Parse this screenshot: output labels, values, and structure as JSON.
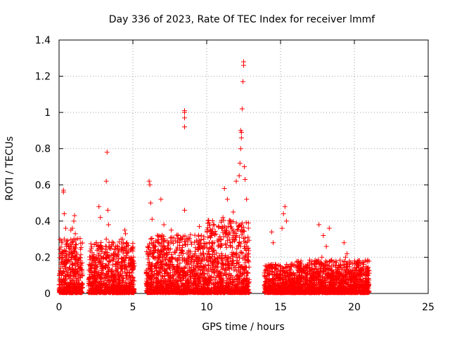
{
  "chart_data": {
    "type": "scatter",
    "title": "Day 336 of 2023, Rate Of TEC Index for receiver lmmf",
    "xlabel": "GPS time / hours",
    "ylabel": "ROTI / TECUs",
    "xlim": [
      0,
      25
    ],
    "ylim": [
      0,
      1.4
    ],
    "xticks": [
      0,
      5,
      10,
      15,
      20,
      25
    ],
    "xtick_labels": [
      "0",
      "5",
      "10",
      "15",
      "20",
      "25"
    ],
    "yticks": [
      0,
      0.2,
      0.4,
      0.6,
      0.8,
      1,
      1.2,
      1.4
    ],
    "ytick_labels": [
      "0",
      "0.2",
      "0.4",
      "0.6",
      "0.8",
      "1",
      "1.2",
      "1.4"
    ],
    "grid": true,
    "marker": "+",
    "color": "#ff0000",
    "series": [
      {
        "name": "ROTI",
        "x": [
          0.05,
          0.1,
          0.15,
          0.2,
          0.25,
          0.3,
          0.35,
          0.4,
          0.45,
          0.5,
          0.55,
          0.6,
          0.65,
          0.7,
          0.8,
          0.9,
          1.0,
          1.1,
          1.2,
          1.3,
          1.4,
          1.5,
          0.3,
          0.3,
          0.35,
          0.45,
          0.5,
          0.55,
          0.8,
          0.9,
          1.0,
          1.05,
          1.1,
          1.15,
          1.2,
          2.0,
          2.1,
          2.2,
          2.3,
          2.4,
          2.5,
          2.6,
          2.7,
          2.8,
          2.9,
          3.0,
          3.1,
          3.2,
          3.3,
          3.4,
          3.5,
          3.6,
          3.7,
          3.8,
          3.9,
          4.0,
          4.1,
          4.2,
          4.3,
          4.4,
          4.5,
          4.6,
          4.7,
          4.8,
          4.9,
          5.0,
          3.2,
          3.25,
          3.3,
          3.35,
          2.7,
          2.8,
          4.3,
          4.45,
          6.0,
          6.2,
          6.4,
          6.6,
          6.8,
          7.0,
          7.2,
          7.4,
          7.6,
          7.8,
          8.0,
          8.2,
          8.4,
          8.6,
          8.8,
          9.0,
          9.2,
          9.4,
          9.6,
          9.8,
          10.0,
          6.1,
          6.15,
          6.2,
          6.3,
          6.9,
          7.1,
          7.6,
          8.5,
          8.5,
          8.5,
          8.5,
          8.5,
          9.5,
          10.2,
          10.4,
          10.6,
          10.8,
          11.0,
          11.2,
          11.4,
          11.6,
          11.8,
          12.0,
          12.2,
          12.4,
          12.6,
          12.8,
          11.2,
          11.4,
          11.8,
          12.0,
          12.2,
          12.25,
          12.3,
          12.3,
          12.35,
          12.35,
          12.4,
          12.45,
          12.5,
          12.5,
          12.55,
          12.6,
          12.7,
          10.3,
          10.5,
          10.8,
          11.1,
          14.0,
          14.2,
          14.4,
          14.6,
          14.8,
          15.0,
          15.2,
          15.4,
          15.6,
          15.8,
          16.0,
          14.4,
          14.5,
          15.1,
          15.2,
          15.3,
          15.4,
          16.2,
          16.4,
          16.6,
          16.8,
          17.0,
          17.2,
          17.4,
          17.6,
          17.8,
          18.0,
          18.2,
          18.4,
          18.6,
          18.8,
          19.0,
          19.2,
          19.4,
          19.6,
          19.8,
          20.0,
          20.2,
          20.4,
          20.6,
          20.8,
          17.6,
          17.9,
          18.1,
          18.3,
          19.3,
          19.5,
          20.3
        ],
        "y": [
          0.05,
          0.12,
          0.2,
          0.28,
          0.15,
          0.08,
          0.3,
          0.1,
          0.22,
          0.05,
          0.13,
          0.18,
          0.09,
          0.25,
          0.06,
          0.14,
          0.11,
          0.2,
          0.07,
          0.15,
          0.1,
          0.04,
          0.56,
          0.57,
          0.44,
          0.36,
          0.26,
          0.18,
          0.35,
          0.36,
          0.4,
          0.43,
          0.33,
          0.2,
          0.17,
          0.08,
          0.12,
          0.05,
          0.18,
          0.1,
          0.06,
          0.15,
          0.22,
          0.09,
          0.14,
          0.2,
          0.1,
          0.3,
          0.12,
          0.18,
          0.07,
          0.13,
          0.2,
          0.1,
          0.16,
          0.08,
          0.25,
          0.3,
          0.12,
          0.2,
          0.33,
          0.28,
          0.15,
          0.1,
          0.24,
          0.09,
          0.62,
          0.78,
          0.46,
          0.38,
          0.48,
          0.42,
          0.3,
          0.35,
          0.1,
          0.15,
          0.2,
          0.08,
          0.12,
          0.18,
          0.25,
          0.1,
          0.2,
          0.14,
          0.18,
          0.12,
          0.22,
          0.1,
          0.16,
          0.2,
          0.12,
          0.18,
          0.1,
          0.15,
          0.2,
          0.62,
          0.6,
          0.5,
          0.41,
          0.52,
          0.38,
          0.35,
          0.92,
          0.97,
          1.0,
          1.01,
          0.46,
          0.37,
          0.2,
          0.28,
          0.15,
          0.3,
          0.22,
          0.35,
          0.18,
          0.26,
          0.3,
          0.2,
          0.28,
          0.35,
          0.25,
          0.18,
          0.58,
          0.52,
          0.45,
          0.62,
          0.65,
          0.72,
          0.8,
          0.9,
          0.89,
          0.86,
          1.02,
          1.17,
          1.26,
          1.28,
          0.7,
          0.63,
          0.52,
          0.32,
          0.28,
          0.37,
          0.42,
          0.03,
          0.08,
          0.12,
          0.05,
          0.1,
          0.15,
          0.08,
          0.12,
          0.06,
          0.1,
          0.04,
          0.34,
          0.28,
          0.36,
          0.44,
          0.48,
          0.4,
          0.06,
          0.1,
          0.14,
          0.08,
          0.12,
          0.1,
          0.16,
          0.08,
          0.2,
          0.14,
          0.1,
          0.18,
          0.12,
          0.08,
          0.14,
          0.1,
          0.2,
          0.12,
          0.08,
          0.06,
          0.1,
          0.04,
          0.07,
          0.05,
          0.38,
          0.32,
          0.26,
          0.36,
          0.28,
          0.22,
          0.13
        ]
      }
    ],
    "dense_bands": [
      {
        "x_range": [
          0.0,
          1.6
        ],
        "y_max": 0.3
      },
      {
        "x_range": [
          2.0,
          5.1
        ],
        "y_max": 0.28
      },
      {
        "x_range": [
          5.9,
          10.0
        ],
        "y_max": 0.32
      },
      {
        "x_range": [
          10.0,
          12.9
        ],
        "y_max": 0.4
      },
      {
        "x_range": [
          13.9,
          16.1
        ],
        "y_max": 0.16
      },
      {
        "x_range": [
          16.1,
          21.0
        ],
        "y_max": 0.18
      }
    ]
  }
}
